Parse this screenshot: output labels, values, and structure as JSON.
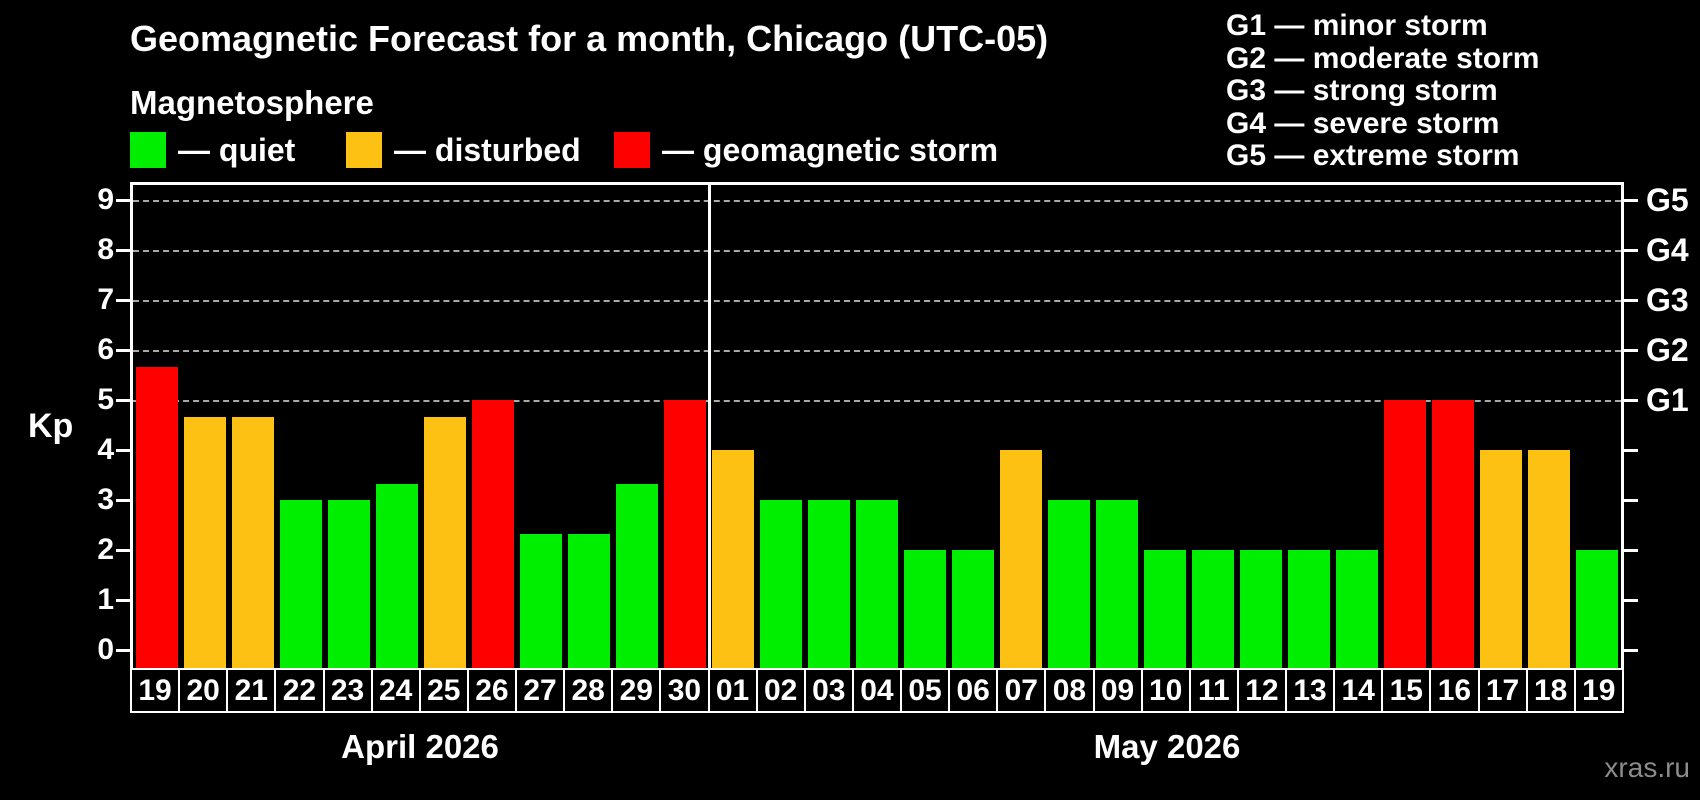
{
  "title": "Geomagnetic Forecast for a month, Chicago (UTC-05)",
  "subtitle": "Magnetosphere",
  "legend": {
    "quiet": "— quiet",
    "disturbed": "— disturbed",
    "storm": "— geomagnetic storm"
  },
  "g_legend": [
    "G1 — minor storm",
    "G2 — moderate storm",
    "G3 — strong storm",
    "G4 — severe storm",
    "G5 — extreme storm"
  ],
  "axis": {
    "kp_label": "Kp",
    "y_ticks": [
      0,
      1,
      2,
      3,
      4,
      5,
      6,
      7,
      8,
      9
    ],
    "right_labels": [
      "G1",
      "G2",
      "G3",
      "G4",
      "G5"
    ]
  },
  "colors": {
    "quiet": "#00ee00",
    "disturbed": "#fdc113",
    "storm": "#ff0000",
    "background": "#000000",
    "grid": "#a8a8a8"
  },
  "watermark": "xras.ru",
  "chart_data": {
    "type": "bar",
    "title": "Geomagnetic Forecast for a month, Chicago (UTC-05)",
    "ylabel": "Kp",
    "ylim": [
      0,
      9
    ],
    "gridlines_at": [
      5,
      6,
      7,
      8,
      9
    ],
    "legend_position": "top",
    "months": [
      {
        "label": "April 2026",
        "days": [
          "19",
          "20",
          "21",
          "22",
          "23",
          "24",
          "25",
          "26",
          "27",
          "28",
          "29",
          "30"
        ],
        "values": [
          5.67,
          4.67,
          4.67,
          3.0,
          3.0,
          3.33,
          4.67,
          5.0,
          2.33,
          2.33,
          3.33,
          5.0
        ],
        "states": [
          "storm",
          "disturbed",
          "disturbed",
          "quiet",
          "quiet",
          "quiet",
          "disturbed",
          "storm",
          "quiet",
          "quiet",
          "quiet",
          "storm"
        ]
      },
      {
        "label": "May 2026",
        "days": [
          "01",
          "02",
          "03",
          "04",
          "05",
          "06",
          "07",
          "08",
          "09",
          "10",
          "11",
          "12",
          "13",
          "14",
          "15",
          "16",
          "17",
          "18",
          "19"
        ],
        "values": [
          4.0,
          3.0,
          3.0,
          3.0,
          2.0,
          2.0,
          4.0,
          3.0,
          3.0,
          2.0,
          2.0,
          2.0,
          2.0,
          2.0,
          5.0,
          5.0,
          4.0,
          4.0,
          2.0
        ],
        "states": [
          "disturbed",
          "quiet",
          "quiet",
          "quiet",
          "quiet",
          "quiet",
          "disturbed",
          "quiet",
          "quiet",
          "quiet",
          "quiet",
          "quiet",
          "quiet",
          "quiet",
          "storm",
          "storm",
          "disturbed",
          "disturbed",
          "quiet"
        ]
      }
    ]
  }
}
